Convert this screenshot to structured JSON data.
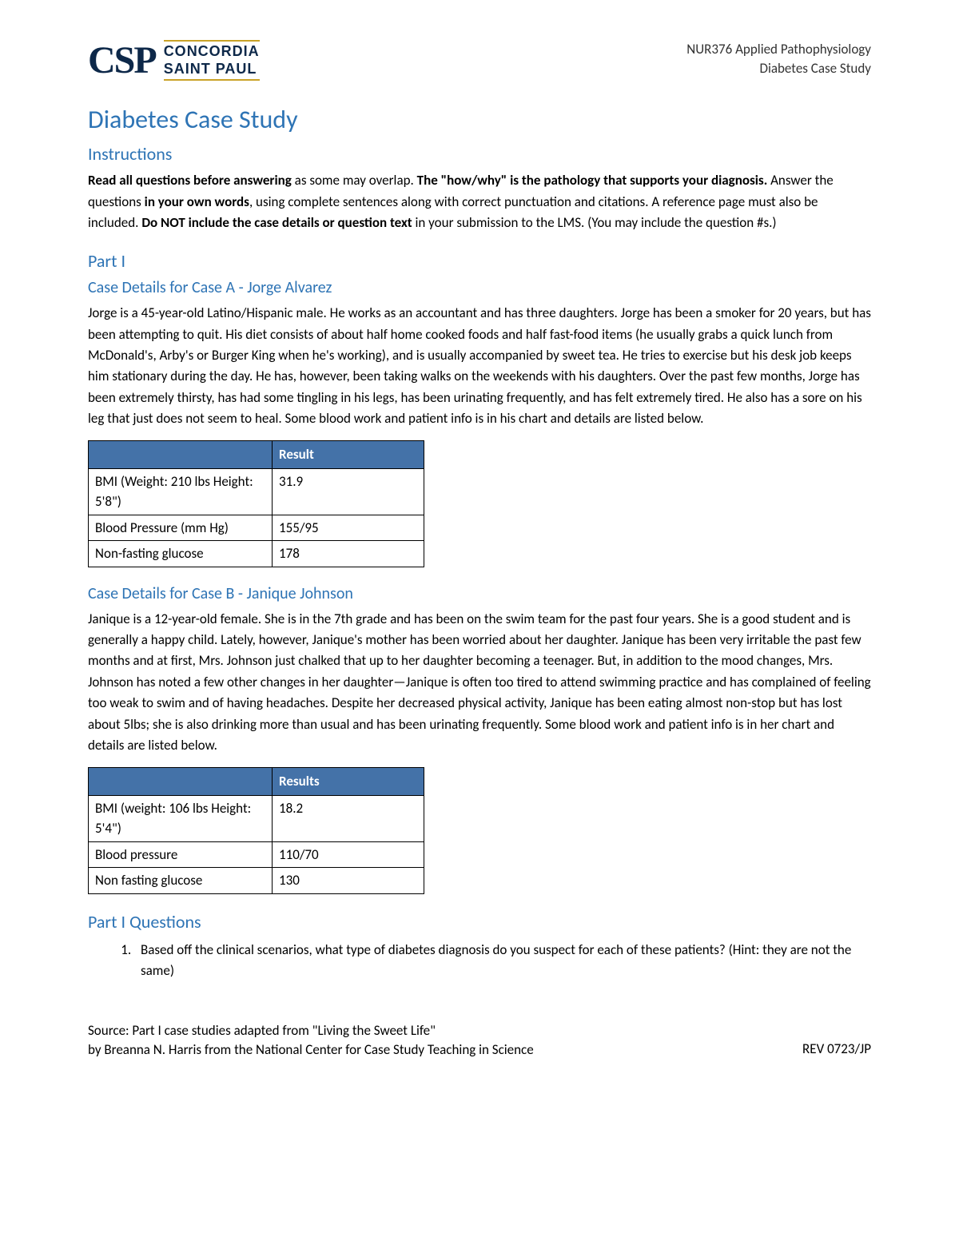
{
  "header": {
    "logo_abbr": "CSP",
    "logo_line1": "CONCORDIA",
    "logo_line2": "SAINT PAUL",
    "course": "NUR376 Applied Pathophysiology",
    "subtitle": "Diabetes Case Study"
  },
  "title": "Diabetes Case Study",
  "instructions": {
    "heading": "Instructions",
    "bold1": "Read all questions before answering",
    "text1": " as some may overlap.  ",
    "bold2": "The \"how/why\" is the pathology that supports your diagnosis.",
    "text2": "  Answer the questions ",
    "bold3": "in your own words",
    "text3": ", using complete sentences along with correct punctuation and citations.  A reference page must also be included.  ",
    "bold4": "Do NOT include the case details or question text",
    "text4": " in your submission to the LMS. (You may include the question #s.)"
  },
  "part1": {
    "heading": "Part I",
    "caseA": {
      "heading": "Case Details for Case A - Jorge Alvarez",
      "text": "Jorge is a 45-year-old Latino/Hispanic male. He works as an accountant and has three daughters. Jorge has been a smoker for 20 years, but has been attempting to quit. His diet consists of about half home cooked foods and half fast-food items (he usually grabs a quick lunch from McDonald's, Arby's or Burger King when he's working), and is usually accompanied by sweet tea. He tries to exercise but his desk job keeps him stationary during the day. He has, however, been taking walks on the weekends with his daughters. Over the past few months, Jorge has been extremely thirsty, has had some tingling in his legs, has been urinating frequently, and has felt extremely tired. He also has a sore on his leg that just does not seem to heal. Some blood work and patient info is in his chart and details are listed below.",
      "table": {
        "header_result": "Result",
        "rows": [
          {
            "label": "BMI (Weight: 210 lbs Height: 5'8\")",
            "value": "31.9"
          },
          {
            "label": "Blood Pressure (mm Hg)",
            "value": "155/95"
          },
          {
            "label": "Non-fasting glucose",
            "value": "178"
          }
        ]
      }
    },
    "caseB": {
      "heading": "Case Details for Case B - Janique Johnson",
      "text": "Janique is a 12-year-old female. She is in the 7th grade and has been on the swim team for the past four years. She is a good student and is generally a happy child. Lately, however, Janique's mother has been worried about her daughter. Janique has been very irritable the past few months and at first, Mrs. Johnson just chalked that up to her daughter becoming a teenager. But, in addition to the mood changes, Mrs. Johnson has noted a few other changes in her daughter—Janique is often too tired to attend swimming practice and has complained of feeling too weak to swim and of having headaches. Despite her decreased physical activity, Janique has been eating almost non-stop but has lost about 5lbs; she is also drinking more than usual and has been urinating frequently. Some blood work and patient info is in her chart and details are listed below.",
      "table": {
        "header_result": "Results",
        "rows": [
          {
            "label": "BMI (weight: 106 lbs Height: 5'4\")",
            "value": "18.2"
          },
          {
            "label": "Blood pressure",
            "value": "110/70"
          },
          {
            "label": "Non fasting glucose",
            "value": "130"
          }
        ]
      }
    },
    "questions": {
      "heading": "Part I Questions",
      "q1": "Based off the clinical scenarios, what type of diabetes diagnosis do you suspect for each of these patients? (Hint: they are not the same)"
    }
  },
  "footer": {
    "source_line1": "Source: Part I case studies adapted from \"Living the Sweet Life\"",
    "source_line2": "by Breanna N. Harris from the National Center for Case Study Teaching in Science",
    "rev": "REV 0723/JP"
  },
  "colors": {
    "heading_blue": "#2e74b5",
    "table_header_bg": "#4472a8",
    "logo_navy": "#0d2849",
    "logo_gold": "#c9a227"
  }
}
